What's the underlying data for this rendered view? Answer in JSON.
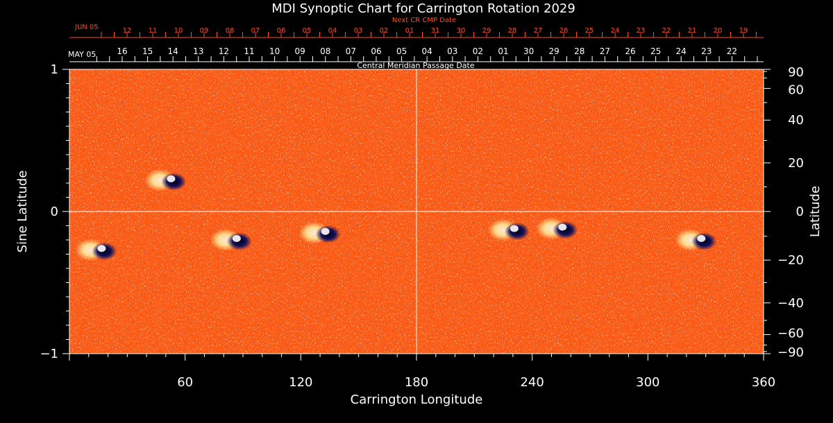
{
  "chart_data": {
    "type": "heatmap",
    "title": "MDI Synoptic Chart for Carrington Rotation 2029",
    "xlabel": "Carrington Longitude",
    "ylabel_left": "Sine Latitude",
    "ylabel_right": "Latitude",
    "xlim": [
      0,
      360
    ],
    "ylim": [
      -1,
      1
    ],
    "x_ticks": [
      60,
      120,
      180,
      240,
      300,
      360
    ],
    "y_left_ticks": [
      {
        "value": 1,
        "label": "1"
      },
      {
        "value": 0,
        "label": "0"
      },
      {
        "value": -1,
        "label": "−1"
      }
    ],
    "y_right_ticks": [
      {
        "value": 90,
        "label": "90"
      },
      {
        "value": 60,
        "label": "60"
      },
      {
        "value": 40,
        "label": "40"
      },
      {
        "value": 20,
        "label": "20"
      },
      {
        "value": 0,
        "label": "0"
      },
      {
        "value": -20,
        "label": "−20"
      },
      {
        "value": -40,
        "label": "−40"
      },
      {
        "value": -60,
        "label": "−60"
      },
      {
        "value": -90,
        "label": "−90"
      }
    ],
    "top_axis_next": {
      "title": "Next CR CMP Date",
      "start_label": "JUN 05",
      "labels": [
        "12",
        "11",
        "10",
        "09",
        "08",
        "07",
        "06",
        "05",
        "04",
        "03",
        "02",
        "01",
        "31",
        "30",
        "29",
        "28",
        "27",
        "26",
        "25",
        "24",
        "23",
        "22",
        "21",
        "20",
        "19"
      ]
    },
    "top_axis_current": {
      "title": "Central Meridian Passage Date",
      "start_label": "MAY 05",
      "labels": [
        "16",
        "15",
        "14",
        "13",
        "12",
        "11",
        "10",
        "09",
        "08",
        "07",
        "06",
        "05",
        "04",
        "03",
        "02",
        "01",
        "30",
        "29",
        "28",
        "27",
        "26",
        "25",
        "24",
        "23",
        "22"
      ]
    },
    "gridlines": {
      "vertical_at": 180,
      "horizontal_at": 0
    },
    "colors": {
      "background": "#ff5a14",
      "positive_polarity": "#fff2a0",
      "negative_polarity": "#14105a",
      "top_axis_next": "#ff4a1a",
      "axes": "#ffffff"
    },
    "active_regions": [
      {
        "lon": 52,
        "sinlat": 0.22,
        "polarity": "bipolar"
      },
      {
        "lon": 16,
        "sinlat": -0.27,
        "polarity": "bipolar"
      },
      {
        "lon": 86,
        "sinlat": -0.2,
        "polarity": "bipolar"
      },
      {
        "lon": 132,
        "sinlat": -0.15,
        "polarity": "bipolar"
      },
      {
        "lon": 230,
        "sinlat": -0.13,
        "polarity": "bipolar"
      },
      {
        "lon": 255,
        "sinlat": -0.12,
        "polarity": "bipolar"
      },
      {
        "lon": 327,
        "sinlat": -0.2,
        "polarity": "bipolar"
      }
    ]
  }
}
